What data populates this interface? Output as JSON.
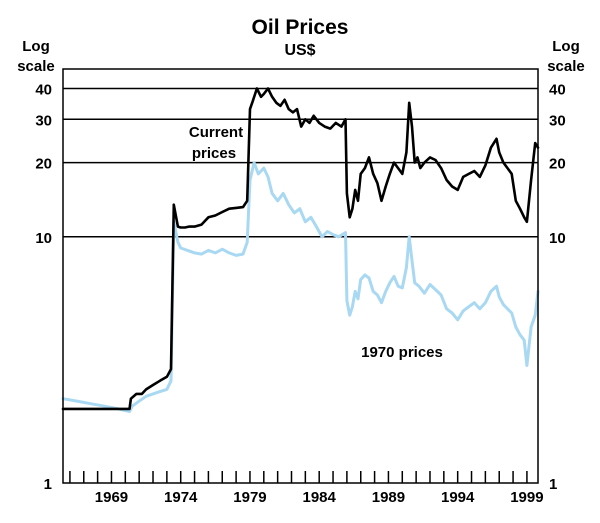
{
  "chart_data": {
    "type": "line",
    "title": "Oil Prices",
    "subtitle": "US$",
    "y_scale": "log",
    "left_axis_label": [
      "Log",
      "scale"
    ],
    "right_axis_label": [
      "Log",
      "scale"
    ],
    "ylim": [
      1,
      48
    ],
    "xlim": [
      1965.5,
      1999.8
    ],
    "y_ticks": [
      {
        "value": 1,
        "label": "1",
        "gridline": false
      },
      {
        "value": 10,
        "label": "10",
        "gridline": true
      },
      {
        "value": 20,
        "label": "20",
        "gridline": true
      },
      {
        "value": 30,
        "label": "30",
        "gridline": true
      },
      {
        "value": 40,
        "label": "40",
        "gridline": true
      }
    ],
    "x_ticks": [
      {
        "value": 1969,
        "label": "1969"
      },
      {
        "value": 1974,
        "label": "1974"
      },
      {
        "value": 1979,
        "label": "1979"
      },
      {
        "value": 1984,
        "label": "1984"
      },
      {
        "value": 1989,
        "label": "1989"
      },
      {
        "value": 1994,
        "label": "1994"
      },
      {
        "value": 1999,
        "label": "1999"
      }
    ],
    "x_minor_ticks_from": 1966,
    "x_minor_ticks_to": 1999,
    "series": [
      {
        "name": "Current prices",
        "label": [
          "Current",
          "prices"
        ],
        "color": "#000000",
        "x": [
          1965.5,
          1970.3,
          1970.4,
          1970.8,
          1971.2,
          1971.5,
          1972.0,
          1972.5,
          1973.0,
          1973.3,
          1973.5,
          1973.8,
          1974.0,
          1974.3,
          1974.6,
          1975.0,
          1975.5,
          1976.0,
          1976.5,
          1977.0,
          1977.5,
          1978.0,
          1978.5,
          1978.8,
          1979.0,
          1979.2,
          1979.5,
          1979.8,
          1980.0,
          1980.3,
          1980.6,
          1980.9,
          1981.2,
          1981.5,
          1981.8,
          1982.1,
          1982.4,
          1982.7,
          1983.0,
          1983.3,
          1983.6,
          1984.0,
          1984.4,
          1984.8,
          1985.2,
          1985.6,
          1985.9,
          1986.0,
          1986.2,
          1986.4,
          1986.6,
          1986.8,
          1987.0,
          1987.3,
          1987.6,
          1987.9,
          1988.2,
          1988.5,
          1988.8,
          1989.1,
          1989.4,
          1989.7,
          1990.0,
          1990.3,
          1990.5,
          1990.7,
          1990.9,
          1991.1,
          1991.3,
          1991.6,
          1992.0,
          1992.4,
          1992.8,
          1993.2,
          1993.6,
          1994.0,
          1994.4,
          1994.8,
          1995.2,
          1995.6,
          1996.0,
          1996.4,
          1996.8,
          1997.0,
          1997.3,
          1997.6,
          1997.9,
          1998.2,
          1998.5,
          1998.8,
          1999.0,
          1999.3,
          1999.6,
          1999.8
        ],
        "values": [
          2.0,
          2.0,
          2.2,
          2.3,
          2.3,
          2.4,
          2.5,
          2.6,
          2.7,
          2.9,
          13.5,
          11.0,
          10.9,
          10.9,
          11.0,
          11.0,
          11.2,
          12.0,
          12.2,
          12.6,
          13.0,
          13.1,
          13.2,
          14.0,
          33.0,
          35.5,
          40.0,
          37.0,
          38.0,
          40.0,
          37.0,
          35.0,
          34.0,
          36.0,
          33.0,
          32.0,
          33.0,
          28.0,
          30.0,
          29.0,
          31.0,
          29.0,
          28.0,
          27.5,
          29.0,
          28.0,
          30.0,
          15.0,
          12.0,
          13.0,
          15.5,
          14.0,
          18.0,
          19.0,
          21.0,
          18.0,
          16.5,
          14.0,
          16.0,
          18.0,
          20.0,
          19.0,
          18.0,
          22.0,
          35.0,
          28.0,
          20.0,
          21.0,
          19.0,
          20.0,
          21.0,
          20.5,
          19.0,
          17.0,
          16.0,
          15.5,
          17.5,
          18.0,
          18.5,
          17.5,
          19.5,
          23.0,
          25.0,
          22.0,
          20.0,
          19.0,
          18.0,
          14.0,
          13.0,
          12.0,
          11.5,
          17.0,
          24.0,
          23.0
        ]
      },
      {
        "name": "1970 prices",
        "label": [
          "1970 prices"
        ],
        "color": "#a9d8f3",
        "x": [
          1965.5,
          1966.5,
          1967.5,
          1968.5,
          1969.5,
          1970.3,
          1970.5,
          1971.0,
          1971.5,
          1972.0,
          1972.5,
          1973.0,
          1973.3,
          1973.5,
          1973.8,
          1974.0,
          1974.5,
          1975.0,
          1975.5,
          1976.0,
          1976.5,
          1977.0,
          1977.5,
          1978.0,
          1978.5,
          1978.8,
          1979.0,
          1979.3,
          1979.6,
          1980.0,
          1980.3,
          1980.6,
          1981.0,
          1981.4,
          1981.8,
          1982.2,
          1982.6,
          1983.0,
          1983.4,
          1983.8,
          1984.2,
          1984.6,
          1985.0,
          1985.4,
          1985.9,
          1986.0,
          1986.2,
          1986.4,
          1986.6,
          1986.8,
          1987.0,
          1987.3,
          1987.6,
          1987.9,
          1988.2,
          1988.5,
          1988.8,
          1989.1,
          1989.4,
          1989.7,
          1990.0,
          1990.3,
          1990.5,
          1990.7,
          1990.9,
          1991.2,
          1991.6,
          1992.0,
          1992.4,
          1992.8,
          1993.2,
          1993.6,
          1994.0,
          1994.4,
          1994.8,
          1995.2,
          1995.6,
          1996.0,
          1996.4,
          1996.8,
          1997.0,
          1997.3,
          1997.6,
          1997.9,
          1998.2,
          1998.5,
          1998.8,
          1999.0,
          1999.3,
          1999.6,
          1999.8
        ],
        "values": [
          2.2,
          2.15,
          2.1,
          2.05,
          2.0,
          1.95,
          2.05,
          2.15,
          2.25,
          2.3,
          2.35,
          2.4,
          2.6,
          11.5,
          9.5,
          9.0,
          8.8,
          8.6,
          8.5,
          8.8,
          8.6,
          8.9,
          8.6,
          8.4,
          8.5,
          9.5,
          17.0,
          20.0,
          18.0,
          19.0,
          17.5,
          15.0,
          14.0,
          15.0,
          13.5,
          12.5,
          13.0,
          11.5,
          12.0,
          11.0,
          10.0,
          10.5,
          10.2,
          10.0,
          10.4,
          5.5,
          4.8,
          5.2,
          6.0,
          5.6,
          6.7,
          7.0,
          6.8,
          6.0,
          5.8,
          5.4,
          6.0,
          6.5,
          6.9,
          6.3,
          6.2,
          7.5,
          10.0,
          8.0,
          6.5,
          6.3,
          5.9,
          6.4,
          6.1,
          5.8,
          5.1,
          4.9,
          4.6,
          5.0,
          5.2,
          5.4,
          5.1,
          5.4,
          6.0,
          6.3,
          5.7,
          5.3,
          5.1,
          4.9,
          4.3,
          4.0,
          3.8,
          3.0,
          4.3,
          4.8,
          6.0
        ]
      }
    ]
  }
}
